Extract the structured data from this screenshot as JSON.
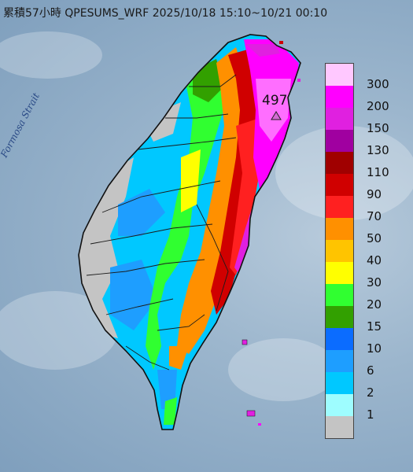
{
  "title": "累積57小時 QPESUMS_WRF 2025/10/18 15:10~10/21 00:10",
  "strait_label": "Formosa Strait",
  "peak_label": "497",
  "legend": {
    "labels": [
      "300",
      "200",
      "150",
      "130",
      "110",
      "90",
      "70",
      "50",
      "40",
      "30",
      "20",
      "15",
      "10",
      "6",
      "2",
      "1"
    ],
    "colors": [
      "#ffc8ff",
      "#ff00ff",
      "#e020e0",
      "#a000a0",
      "#a00000",
      "#d00000",
      "#ff2020",
      "#ff9000",
      "#ffc400",
      "#ffff00",
      "#30ff30",
      "#32a000",
      "#0b6cff",
      "#1e9eff",
      "#00c8ff",
      "#9efdff",
      "#c4c4c4"
    ]
  },
  "colors": {
    "sea": "#9cb6cd",
    "coast_line": "#111111",
    "river": "#1b1b1b"
  }
}
